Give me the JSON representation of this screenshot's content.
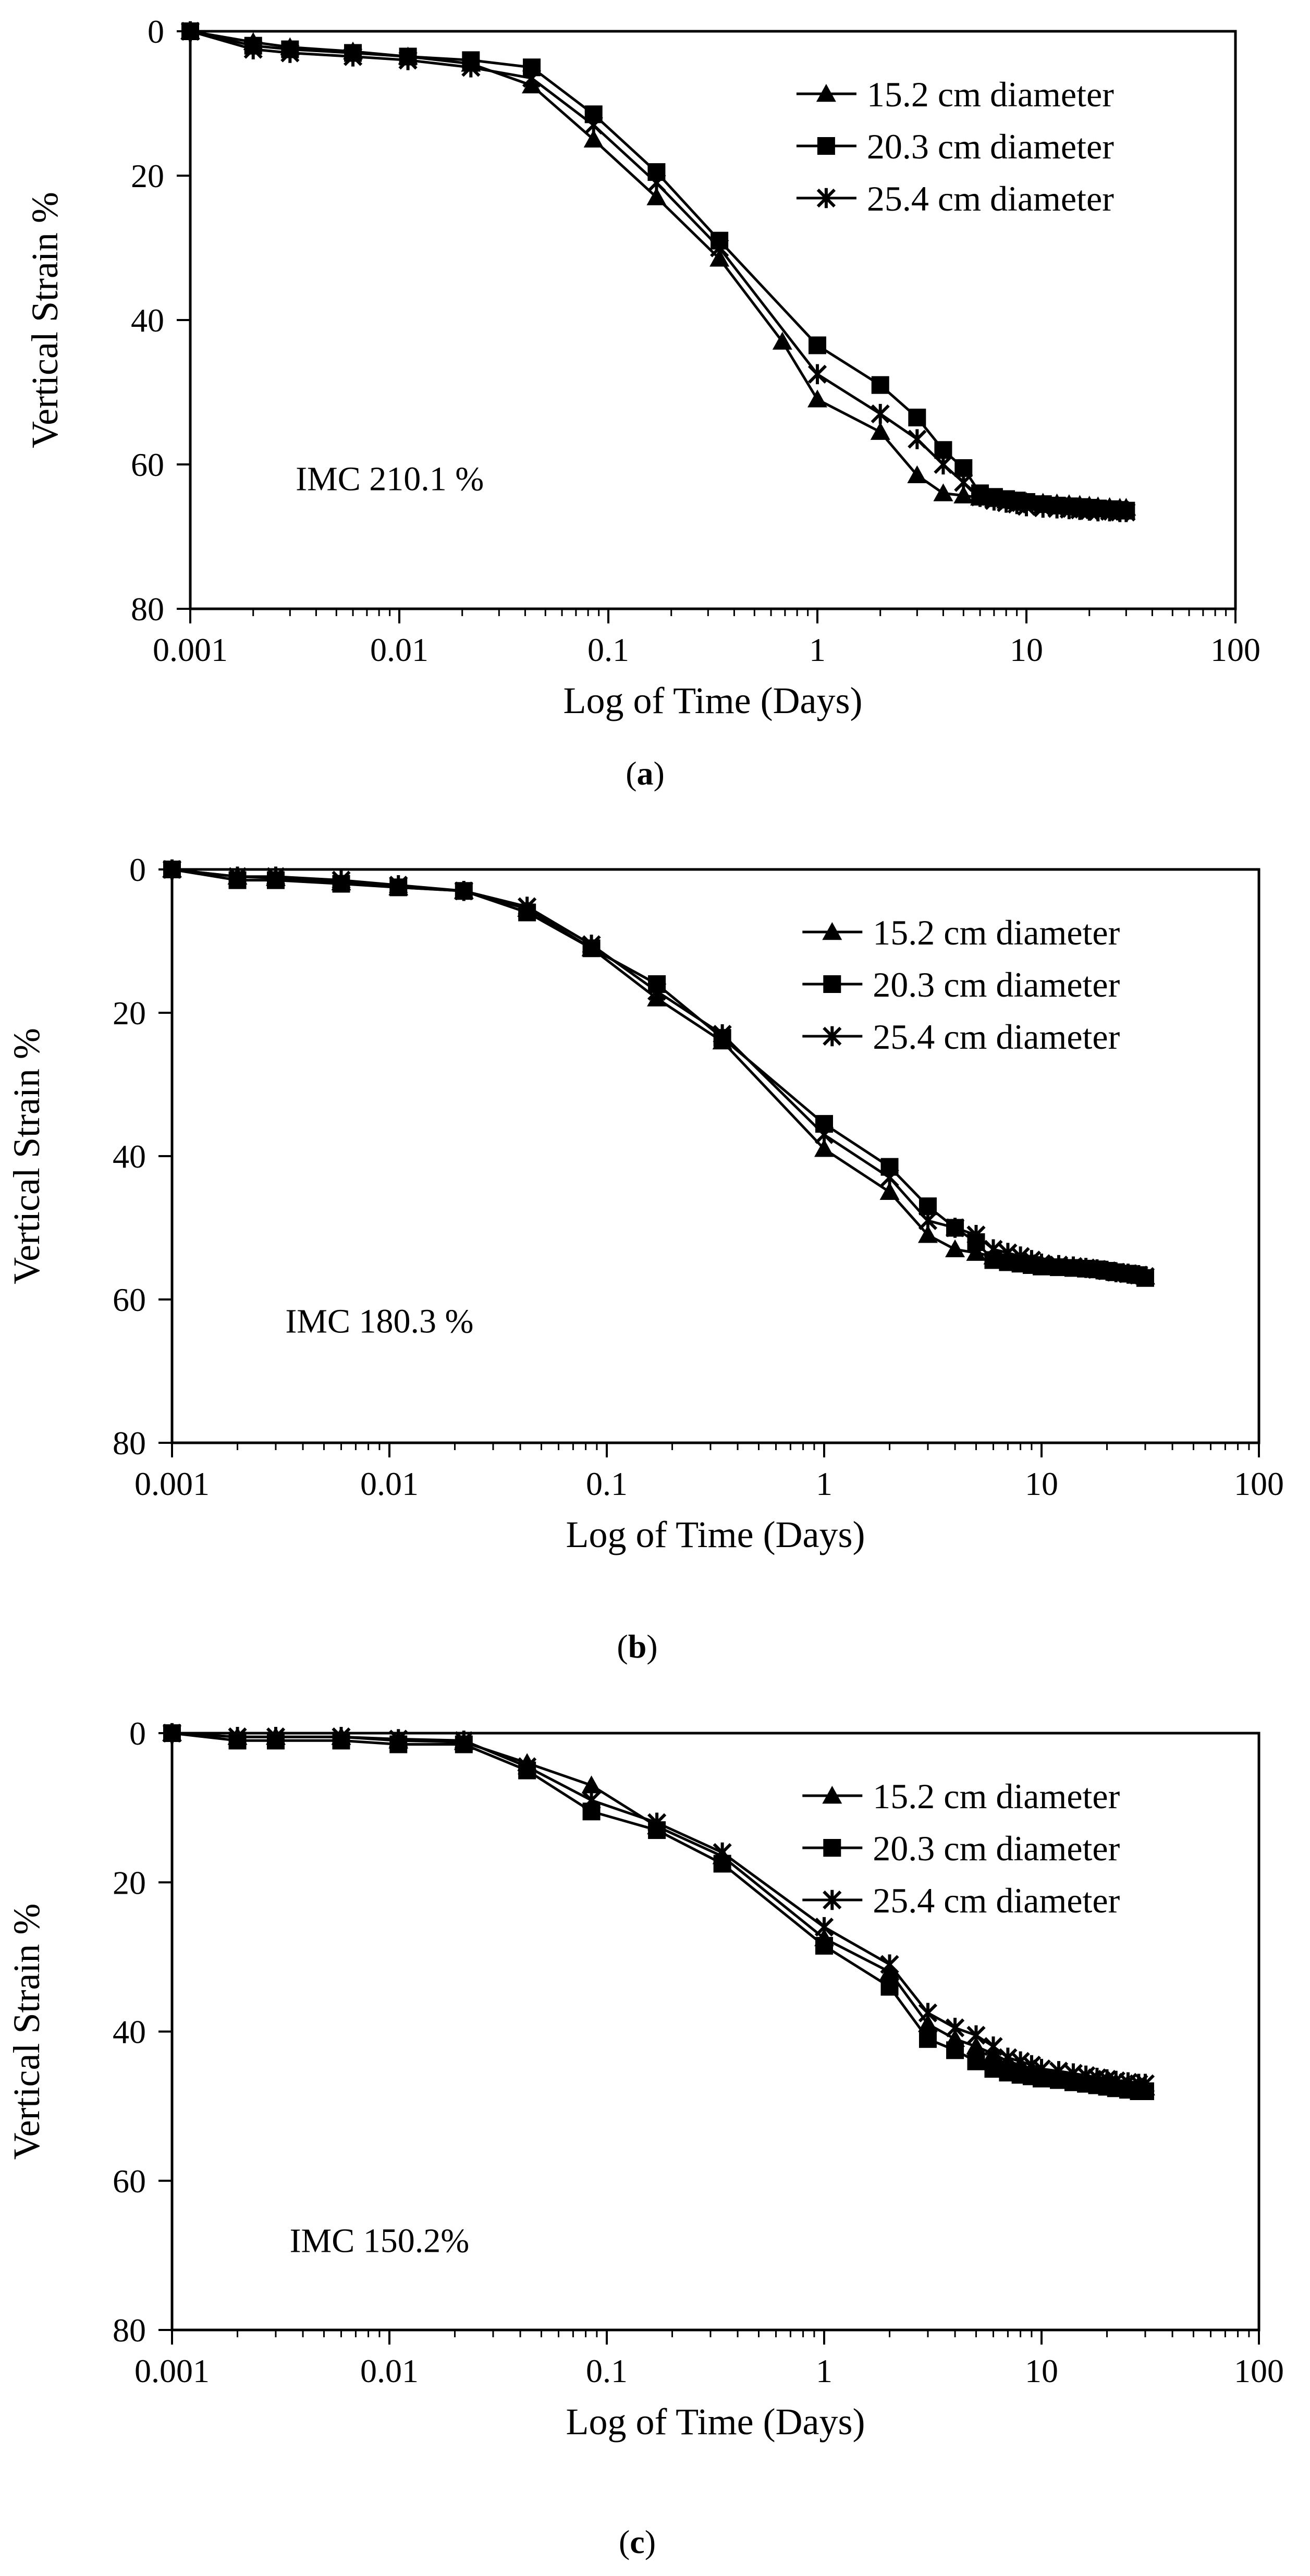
{
  "chart_data": [
    {
      "type": "line",
      "panel_label": "a",
      "annotation": "IMC 210.1 %",
      "xlabel": "Log of Time (Days)",
      "ylabel": "Vertical Strain %",
      "xscale": "log",
      "xlim": [
        0.001,
        100
      ],
      "ylim": [
        0,
        80
      ],
      "y_inverted": true,
      "x_tick_labels": [
        "0.001",
        "0.01",
        "0.1",
        "1",
        "10",
        "100"
      ],
      "y_tick_labels": [
        "0",
        "20",
        "40",
        "60",
        "80"
      ],
      "legend_position": "top-right",
      "series": [
        {
          "name": "15.2 cm diameter",
          "marker": "triangle",
          "x": [
            0.001,
            0.002,
            0.003,
            0.006,
            0.011,
            0.022,
            0.043,
            0.085,
            0.17,
            0.34,
            0.68,
            1,
            2,
            3,
            4,
            5,
            6,
            7,
            8,
            9,
            10,
            12,
            14,
            16,
            18,
            20,
            22,
            25,
            28,
            30
          ],
          "y": [
            0,
            1.5,
            2.2,
            2.8,
            3.5,
            4.5,
            7.5,
            15,
            23,
            31.5,
            43,
            51,
            55.5,
            61.5,
            64,
            64.3,
            64.6,
            64.8,
            65,
            65.1,
            65.2,
            65.3,
            65.4,
            65.5,
            65.6,
            65.7,
            65.8,
            65.9,
            66,
            66
          ]
        },
        {
          "name": "20.3 cm diameter",
          "marker": "square",
          "x": [
            0.001,
            0.002,
            0.003,
            0.006,
            0.011,
            0.022,
            0.043,
            0.085,
            0.17,
            0.34,
            1,
            2,
            3,
            4,
            5,
            6,
            7,
            8,
            9,
            10,
            12,
            14,
            16,
            18,
            20,
            22,
            25,
            28,
            30
          ],
          "y": [
            0,
            2,
            2.5,
            3,
            3.5,
            4,
            5,
            11.5,
            19.5,
            29,
            43.5,
            49,
            53.5,
            58,
            60.5,
            64,
            64.5,
            64.8,
            65,
            65.2,
            65.5,
            65.7,
            65.8,
            65.9,
            66,
            66.1,
            66.2,
            66.3,
            66.4
          ]
        },
        {
          "name": "25.4 cm diameter",
          "marker": "asterisk",
          "x": [
            0.001,
            0.002,
            0.003,
            0.006,
            0.011,
            0.022,
            0.043,
            0.085,
            0.17,
            0.34,
            1,
            2,
            3,
            4,
            5,
            6,
            7,
            8,
            9,
            10,
            12,
            14,
            16,
            18,
            20,
            22,
            25,
            28,
            30
          ],
          "y": [
            0,
            2.5,
            3,
            3.5,
            4,
            5,
            6.5,
            13,
            21,
            30,
            47.5,
            53,
            56.5,
            60,
            62.5,
            64.5,
            65,
            65.3,
            65.5,
            65.8,
            66,
            66.1,
            66.2,
            66.3,
            66.4,
            66.5,
            66.5,
            66.6,
            66.6
          ]
        }
      ]
    },
    {
      "type": "line",
      "panel_label": "b",
      "annotation": "IMC 180.3 %",
      "xlabel": "Log of Time (Days)",
      "ylabel": "Vertical Strain %",
      "xscale": "log",
      "xlim": [
        0.001,
        100
      ],
      "ylim": [
        0,
        80
      ],
      "y_inverted": true,
      "x_tick_labels": [
        "0.001",
        "0.01",
        "0.1",
        "1",
        "10",
        "100"
      ],
      "y_tick_labels": [
        "0",
        "20",
        "40",
        "60",
        "80"
      ],
      "legend_position": "top-right",
      "series": [
        {
          "name": "15.2 cm diameter",
          "marker": "triangle",
          "x": [
            0.001,
            0.002,
            0.003,
            0.006,
            0.011,
            0.022,
            0.043,
            0.085,
            0.17,
            0.34,
            1,
            2,
            3,
            4,
            5,
            6,
            7,
            8,
            9,
            10,
            12,
            14,
            16,
            18,
            20,
            22,
            25,
            28,
            30
          ],
          "y": [
            0,
            1,
            1.2,
            1.8,
            2.5,
            3,
            5.5,
            11,
            18,
            24,
            39,
            45,
            51,
            53,
            53.5,
            54,
            54.3,
            54.5,
            54.7,
            55,
            55.2,
            55.4,
            55.6,
            55.8,
            56,
            56.2,
            56.4,
            56.6,
            56.8
          ]
        },
        {
          "name": "20.3 cm diameter",
          "marker": "square",
          "x": [
            0.001,
            0.002,
            0.003,
            0.006,
            0.011,
            0.022,
            0.043,
            0.085,
            0.17,
            0.34,
            1,
            2,
            3,
            4,
            5,
            6,
            7,
            8,
            9,
            10,
            12,
            14,
            16,
            18,
            20,
            22,
            25,
            28,
            30
          ],
          "y": [
            0,
            1.5,
            1.5,
            2,
            2.5,
            3,
            6,
            11,
            16,
            23.5,
            35.5,
            41.5,
            47,
            50,
            52,
            54.5,
            54.8,
            55,
            55.2,
            55.4,
            55.5,
            55.6,
            55.7,
            55.8,
            56,
            56.2,
            56.4,
            56.6,
            57
          ]
        },
        {
          "name": "25.4 cm diameter",
          "marker": "asterisk",
          "x": [
            0.001,
            0.002,
            0.003,
            0.006,
            0.011,
            0.022,
            0.043,
            0.085,
            0.17,
            0.34,
            1,
            2,
            3,
            4,
            5,
            6,
            7,
            8,
            9,
            10,
            12,
            14,
            16,
            18,
            20,
            22,
            25,
            28,
            30
          ],
          "y": [
            0,
            1,
            1,
            1.5,
            2.2,
            3,
            5.2,
            10.5,
            17,
            23,
            37,
            43,
            49,
            50,
            51,
            53,
            53.5,
            54,
            54.5,
            55,
            55.2,
            55.4,
            55.6,
            55.8,
            56,
            56.2,
            56.4,
            56.6,
            56.8
          ]
        }
      ]
    },
    {
      "type": "line",
      "panel_label": "c",
      "annotation": "IMC 150.2%",
      "xlabel": "Log of Time (Days)",
      "ylabel": "Vertical Strain %",
      "xscale": "log",
      "xlim": [
        0.001,
        100
      ],
      "ylim": [
        0,
        80
      ],
      "y_inverted": true,
      "x_tick_labels": [
        "0.001",
        "0.01",
        "0.1",
        "1",
        "10",
        "100"
      ],
      "y_tick_labels": [
        "0",
        "20",
        "40",
        "60",
        "80"
      ],
      "legend_position": "top-right",
      "series": [
        {
          "name": "15.2 cm diameter",
          "marker": "triangle",
          "x": [
            0.001,
            0.002,
            0.003,
            0.006,
            0.011,
            0.022,
            0.043,
            0.085,
            0.17,
            0.34,
            1,
            2,
            3,
            4,
            5,
            6,
            7,
            8,
            9,
            10,
            12,
            14,
            16,
            18,
            20,
            22,
            25,
            28,
            30
          ],
          "y": [
            0,
            0.5,
            0.5,
            0.5,
            1,
            1.2,
            4,
            7,
            12.5,
            16.5,
            27.5,
            32,
            39,
            41,
            42,
            43,
            44,
            44.5,
            45,
            45.5,
            45.8,
            46,
            46.2,
            46.4,
            46.6,
            46.8,
            47,
            47.2,
            47.5
          ]
        },
        {
          "name": "20.3 cm diameter",
          "marker": "square",
          "x": [
            0.001,
            0.002,
            0.003,
            0.006,
            0.011,
            0.022,
            0.043,
            0.085,
            0.17,
            0.34,
            1,
            2,
            3,
            4,
            5,
            6,
            7,
            8,
            9,
            10,
            12,
            14,
            16,
            18,
            20,
            22,
            25,
            28,
            30
          ],
          "y": [
            0,
            1,
            1,
            1,
            1.5,
            1.5,
            5,
            10.5,
            13,
            17.5,
            28.5,
            34,
            41,
            42.5,
            44,
            45,
            45.5,
            45.8,
            46,
            46.3,
            46.5,
            46.8,
            47,
            47.2,
            47.4,
            47.6,
            47.8,
            48,
            48
          ]
        },
        {
          "name": "25.4 cm diameter",
          "marker": "asterisk",
          "x": [
            0.001,
            0.002,
            0.003,
            0.006,
            0.011,
            0.022,
            0.043,
            0.085,
            0.17,
            0.34,
            1,
            2,
            3,
            4,
            5,
            6,
            7,
            8,
            9,
            10,
            12,
            14,
            16,
            18,
            20,
            22,
            25,
            28,
            30
          ],
          "y": [
            0,
            0.5,
            0.5,
            0.5,
            0.8,
            1,
            4.5,
            9,
            12,
            16,
            26,
            31,
            37.5,
            39.5,
            40.5,
            42,
            43.5,
            44,
            44.5,
            45,
            45.3,
            45.6,
            45.9,
            46.2,
            46.4,
            46.6,
            46.8,
            47,
            47
          ]
        }
      ]
    }
  ]
}
